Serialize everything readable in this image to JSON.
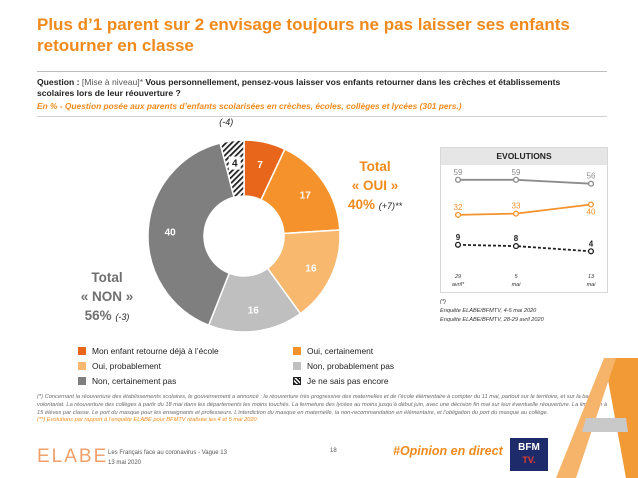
{
  "header": {
    "title": "Plus d’1 parent sur 2 envisage toujours ne pas laisser ses enfants retourner en classe"
  },
  "question": {
    "label": "Question : ",
    "type": "[Mise à niveau]*",
    "text": " Vous personnellement, pensez-vous laisser vos enfants retourner dans les crèches et établissements scolaires lors de leur réouverture ?",
    "base": "En % - Question posée aux parents d’enfants scolarisées en crèches, écoles, collèges et lycées (301 pers.)"
  },
  "totals": {
    "oui_label": "Total",
    "oui_sub": "« OUI »",
    "oui_value": "40%",
    "oui_evo": "(+7)**",
    "non_label": "Total",
    "non_sub": "« NON »",
    "non_value": "56%",
    "non_evo": "(-3)"
  },
  "colors": {
    "accent": "#f08a1c",
    "orange_dark": "#e8661c",
    "orange": "#f5922b",
    "orange_light": "#f8b96f",
    "grey_light": "#bfbfbf",
    "grey_dark": "#7f7f7f"
  },
  "chart_data": [
    {
      "type": "pie",
      "slices": [
        {
          "label": "Mon enfant retourne déjà à l’école",
          "value": 7,
          "color": "#e8661c",
          "text_color": "#ffffff"
        },
        {
          "label": "Oui, certainement",
          "value": 17,
          "color": "#f5922b",
          "text_color": "#ffffff"
        },
        {
          "label": "Oui, probablement",
          "value": 16,
          "color": "#f8b96f",
          "text_color": "#ffffff"
        },
        {
          "label": "Non, probablement pas",
          "value": 16,
          "color": "#bfbfbf",
          "text_color": "#ffffff"
        },
        {
          "label": "Non, certainement pas",
          "value": 40,
          "color": "#7f7f7f",
          "text_color": "#ffffff"
        },
        {
          "label": "Je ne sais pas encore",
          "value": 4,
          "color": "hatch",
          "text_color": "#222222",
          "annotation": "(-4)"
        }
      ]
    },
    {
      "type": "line",
      "title": "EVOLUTIONS",
      "x": [
        "29 avril*",
        "5 mai",
        "13 mai"
      ],
      "series": [
        {
          "values": [
            59,
            59,
            56
          ],
          "color": "#8c8c8c",
          "style": "solid"
        },
        {
          "values": [
            32,
            33,
            40
          ],
          "color": "#f5922b",
          "style": "solid"
        },
        {
          "values": [
            9,
            8,
            4
          ],
          "color": "#222222",
          "style": "dashed"
        }
      ]
    }
  ],
  "evolutions": {
    "notes": [
      "(*)",
      "Enquête ELABE/BFMTV, 4-5 mai 2020",
      "Enquête ELABE/BFMTV, 28-29 avril 2020"
    ]
  },
  "legend": {
    "items": [
      "Mon enfant retourne déjà à l’école",
      "Oui, certainement",
      "Oui, probablement",
      "Non, probablement pas",
      "Non, certainement pas",
      "Je ne sais pas encore"
    ]
  },
  "footnote": {
    "text": "(*) Concernant la réouverture des établissements scolaires, le gouvernement a annoncé : la réouverture très progressive des maternelles et de l’école élémentaire à compter du 11 mai, partout sur le territoire, et sur la base du volontariat. La réouverture des collèges à partir du 18 mai dans les départements les moins touchés. La fermeture des lycées au moins jusqu’à début juin, avec une décision fin mai sur leur éventuelle réouverture. La limitation à 15 élèves par classe. Le port du masque pour les enseignants et professeurs. L’interdiction du masque en maternelle, la non-recommandation en élémentaire, et l’obligation du port du masque au collège.",
    "evo_note": "(**) Evolutions par rapport à l’enquête ELABE pour BFMTV réalisée les 4 et 5 mai 2020"
  },
  "footer": {
    "logo": "ELABE",
    "study": "Les Français face au coronavirus - Vague 13",
    "date": "13 mai 2020",
    "page": "18",
    "hashtag": "#Opinion en direct",
    "partner_top": "BFM",
    "partner_bottom": "TV."
  }
}
